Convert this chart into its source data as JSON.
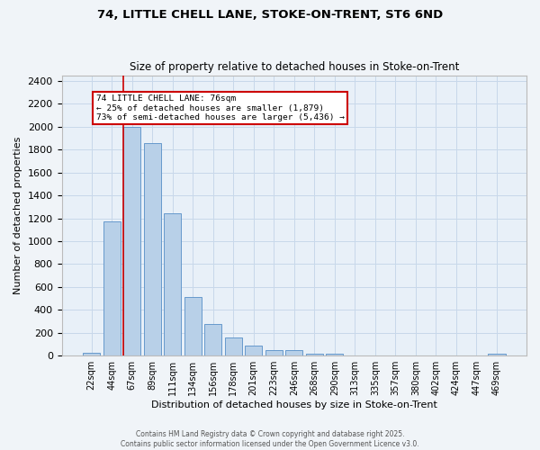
{
  "title1": "74, LITTLE CHELL LANE, STOKE-ON-TRENT, ST6 6ND",
  "title2": "Size of property relative to detached houses in Stoke-on-Trent",
  "xlabel": "Distribution of detached houses by size in Stoke-on-Trent",
  "ylabel": "Number of detached properties",
  "categories": [
    "22sqm",
    "44sqm",
    "67sqm",
    "89sqm",
    "111sqm",
    "134sqm",
    "156sqm",
    "178sqm",
    "201sqm",
    "223sqm",
    "246sqm",
    "268sqm",
    "290sqm",
    "313sqm",
    "335sqm",
    "357sqm",
    "380sqm",
    "402sqm",
    "424sqm",
    "447sqm",
    "469sqm"
  ],
  "values": [
    25,
    1170,
    2000,
    1860,
    1240,
    510,
    275,
    155,
    90,
    45,
    45,
    20,
    15,
    5,
    2,
    2,
    2,
    2,
    2,
    2,
    15
  ],
  "bar_color": "#b8d0e8",
  "bar_edge_color": "#6699cc",
  "red_line_color": "#cc0000",
  "annotation_title": "74 LITTLE CHELL LANE: 76sqm",
  "annotation_line1": "← 25% of detached houses are smaller (1,879)",
  "annotation_line2": "73% of semi-detached houses are larger (5,436) →",
  "ylim": [
    0,
    2450
  ],
  "yticks": [
    0,
    200,
    400,
    600,
    800,
    1000,
    1200,
    1400,
    1600,
    1800,
    2000,
    2200,
    2400
  ],
  "grid_color": "#c8d8ea",
  "bg_color": "#e8f0f8",
  "fig_bg_color": "#f0f4f8",
  "footer1": "Contains HM Land Registry data © Crown copyright and database right 2025.",
  "footer2": "Contains public sector information licensed under the Open Government Licence v3.0."
}
